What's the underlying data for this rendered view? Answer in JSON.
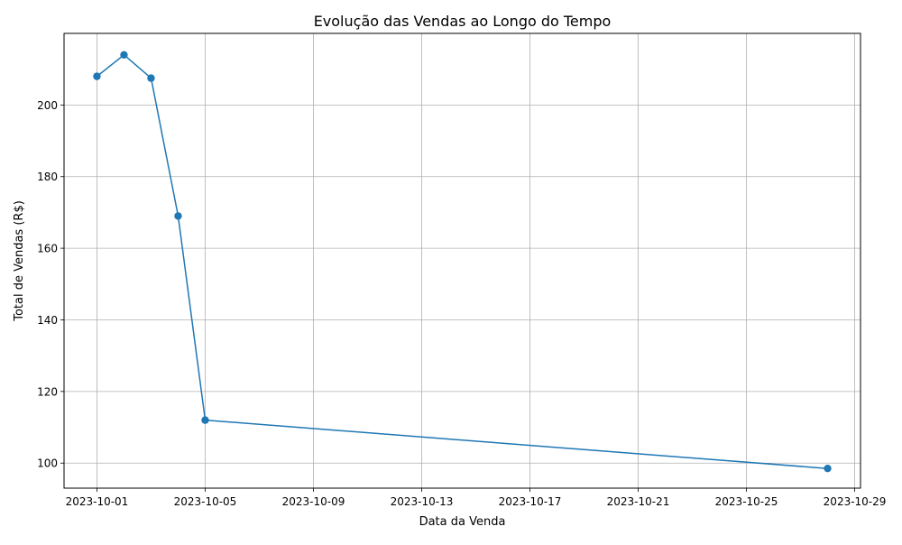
{
  "chart_data": {
    "type": "line",
    "title": "Evolução das Vendas ao Longo do Tempo",
    "xlabel": "Data da Venda",
    "ylabel": "Total de Vendas (R$)",
    "x_ticks": [
      "2023-10-01",
      "2023-10-05",
      "2023-10-09",
      "2023-10-13",
      "2023-10-17",
      "2023-10-21",
      "2023-10-25",
      "2023-10-29"
    ],
    "y_ticks": [
      100,
      120,
      140,
      160,
      180,
      200
    ],
    "xlim": [
      "2023-09-30",
      "2023-10-29"
    ],
    "ylim": [
      93,
      220
    ],
    "grid": true,
    "marker": "circle",
    "series": [
      {
        "color": "#1f77b4",
        "x": [
          "2023-10-01",
          "2023-10-02",
          "2023-10-03",
          "2023-10-04",
          "2023-10-05",
          "2023-10-28"
        ],
        "values": [
          208,
          214,
          207.5,
          169,
          112,
          98.5
        ]
      }
    ]
  }
}
